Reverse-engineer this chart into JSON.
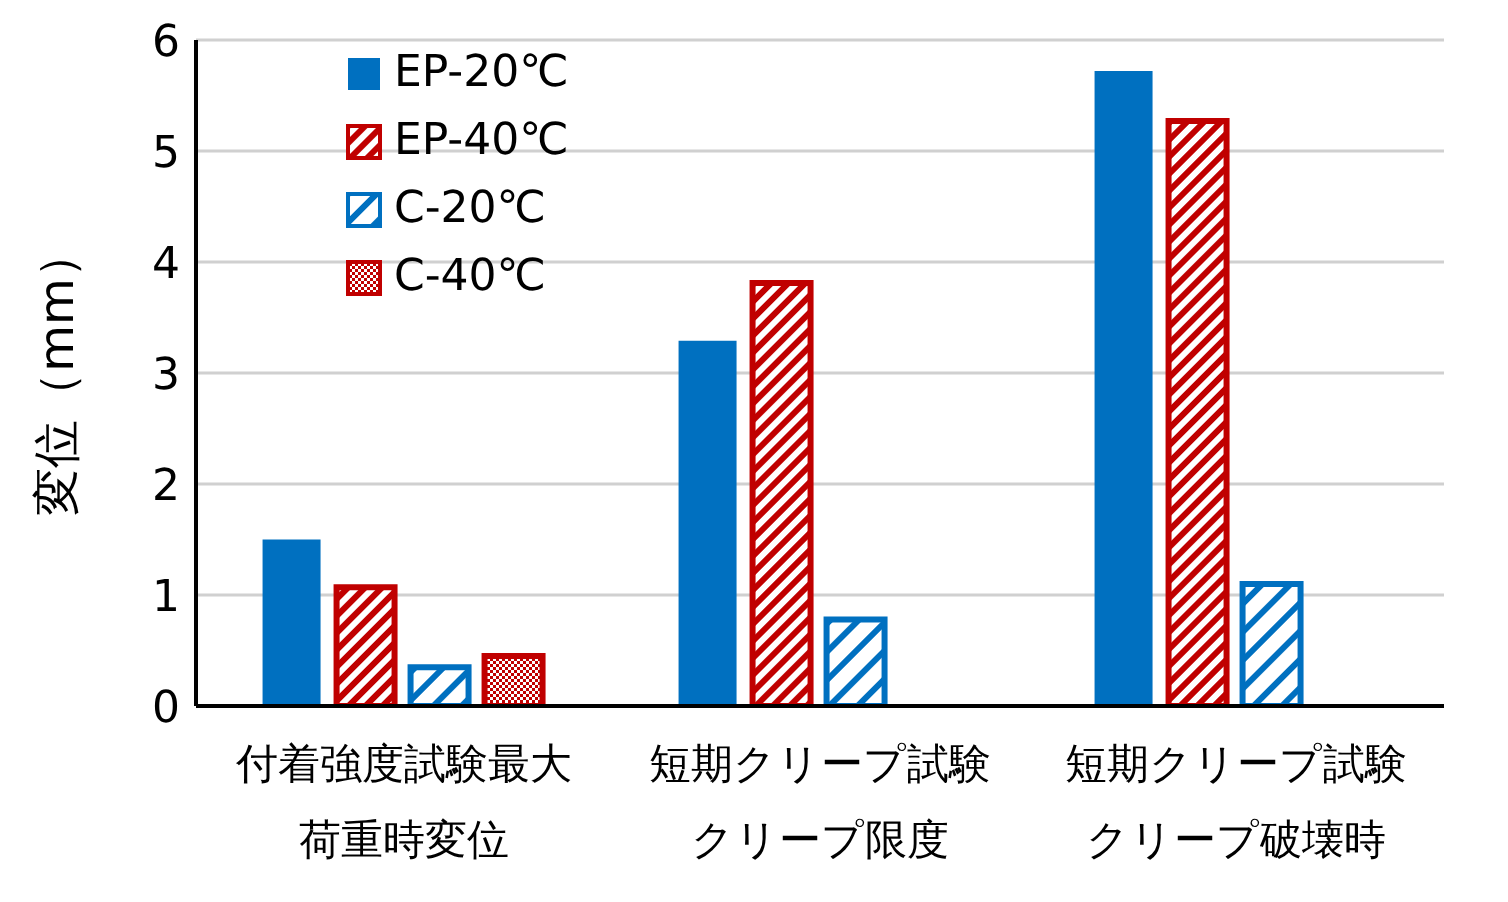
{
  "chart_data": {
    "type": "bar",
    "ylabel": "変位（mm）",
    "categories": [
      "付着強度試験最大荷重時変位",
      "短期クリープ試験クリープ限度",
      "短期クリープ試験クリープ破壊時"
    ],
    "series": [
      {
        "name": "EP-20℃",
        "color": "#0070c0",
        "values": [
          1.5,
          3.29,
          5.72
        ]
      },
      {
        "name": "EP-40℃",
        "color": "#c00000",
        "values": [
          1.07,
          3.81,
          5.27
        ]
      },
      {
        "name": "C-20℃",
        "color": "#0070c0",
        "values": [
          0.35,
          0.78,
          1.1
        ]
      },
      {
        "name": "C-40℃",
        "color": "#c00000",
        "values": [
          0.45,
          null,
          null
        ]
      }
    ],
    "ylim": [
      0,
      6
    ],
    "yticks": [
      0,
      1,
      2,
      3,
      4,
      5,
      6
    ],
    "grid": "y",
    "legend": "top left"
  }
}
